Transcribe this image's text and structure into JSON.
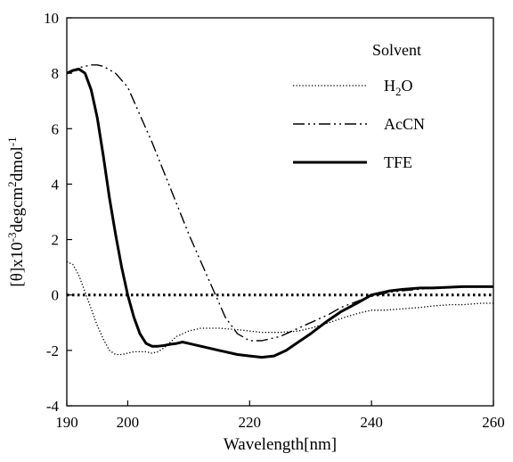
{
  "chart_data": {
    "type": "line",
    "title": "",
    "xlabel": "Wavelength[nm]",
    "ylabel": "[θ]x10-3degcm2dmol-1",
    "ylabel_parts": {
      "base": "[θ]x10",
      "exp1": "-3",
      "mid": "degcm",
      "exp2": "2",
      "end": "dmol",
      "exp3": "-1"
    },
    "xlim": [
      190,
      260
    ],
    "ylim": [
      -4,
      10
    ],
    "xticks": [
      "190",
      "200",
      "220",
      "240",
      "260"
    ],
    "xtick_values": [
      190,
      200,
      220,
      240,
      260
    ],
    "yticks": [
      "-4",
      "-2",
      "0",
      "2",
      "4",
      "6",
      "8",
      "10"
    ],
    "ytick_values": [
      -4,
      -2,
      0,
      2,
      4,
      6,
      8,
      10
    ],
    "grid": false,
    "legend": {
      "title": "Solvent",
      "position": "top-right",
      "entries": [
        {
          "label": "H2O",
          "label_main": "H",
          "label_sub": "2",
          "label_tail": "O"
        },
        {
          "label": "AcCN",
          "label_main": "AcCN",
          "label_sub": "",
          "label_tail": ""
        },
        {
          "label": "TFE",
          "label_main": "TFE",
          "label_sub": "",
          "label_tail": ""
        }
      ]
    },
    "reference_line": {
      "y": 0,
      "style": "dotted"
    },
    "series": [
      {
        "name": "H2O",
        "style": "dotted",
        "color": "#000000",
        "x": [
          190,
          191,
          192,
          193,
          194,
          195,
          196,
          197,
          198,
          199,
          200,
          201,
          202,
          203,
          204,
          205,
          206,
          207,
          208,
          210,
          212,
          215,
          218,
          220,
          222,
          225,
          228,
          230,
          233,
          235,
          238,
          240,
          242,
          245,
          248,
          250,
          253,
          255,
          258,
          260
        ],
        "y": [
          1.2,
          1.1,
          0.7,
          0.1,
          -0.5,
          -1.1,
          -1.6,
          -2.0,
          -2.15,
          -2.15,
          -2.1,
          -2.05,
          -2.05,
          -2.05,
          -2.1,
          -2.05,
          -1.9,
          -1.7,
          -1.5,
          -1.3,
          -1.2,
          -1.2,
          -1.25,
          -1.3,
          -1.35,
          -1.35,
          -1.3,
          -1.2,
          -1.0,
          -0.85,
          -0.65,
          -0.55,
          -0.55,
          -0.5,
          -0.45,
          -0.4,
          -0.35,
          -0.35,
          -0.3,
          -0.3
        ]
      },
      {
        "name": "AcCN",
        "style": "dash-dot-dot",
        "color": "#000000",
        "x": [
          190,
          192,
          194,
          195,
          196,
          198,
          200,
          202,
          204,
          206,
          208,
          210,
          212,
          214,
          215,
          216,
          218,
          220,
          222,
          225,
          228,
          230,
          233,
          235,
          238,
          240,
          243,
          245,
          250,
          255,
          260
        ],
        "y": [
          8.0,
          8.2,
          8.3,
          8.3,
          8.25,
          8.0,
          7.5,
          6.5,
          5.5,
          4.4,
          3.3,
          2.2,
          1.2,
          0.2,
          -0.3,
          -0.8,
          -1.4,
          -1.65,
          -1.65,
          -1.5,
          -1.2,
          -1.0,
          -0.7,
          -0.45,
          -0.2,
          -0.05,
          0.1,
          0.15,
          0.25,
          0.3,
          0.3
        ]
      },
      {
        "name": "TFE",
        "style": "solid",
        "color": "#000000",
        "x": [
          190,
          191,
          192,
          193,
          194,
          195,
          196,
          197,
          198,
          199,
          200,
          201,
          202,
          203,
          204,
          205,
          206,
          207,
          208,
          209,
          210,
          212,
          215,
          218,
          220,
          222,
          224,
          226,
          228,
          230,
          233,
          235,
          238,
          240,
          243,
          245,
          248,
          250,
          253,
          255,
          258,
          260
        ],
        "y": [
          8.0,
          8.1,
          8.15,
          8.0,
          7.4,
          6.4,
          5.0,
          3.5,
          2.2,
          1.0,
          0.0,
          -0.8,
          -1.4,
          -1.75,
          -1.85,
          -1.85,
          -1.82,
          -1.78,
          -1.75,
          -1.7,
          -1.75,
          -1.85,
          -2.0,
          -2.15,
          -2.2,
          -2.25,
          -2.2,
          -2.0,
          -1.7,
          -1.4,
          -0.9,
          -0.6,
          -0.25,
          0.0,
          0.15,
          0.2,
          0.25,
          0.25,
          0.28,
          0.3,
          0.3,
          0.3
        ]
      }
    ]
  }
}
